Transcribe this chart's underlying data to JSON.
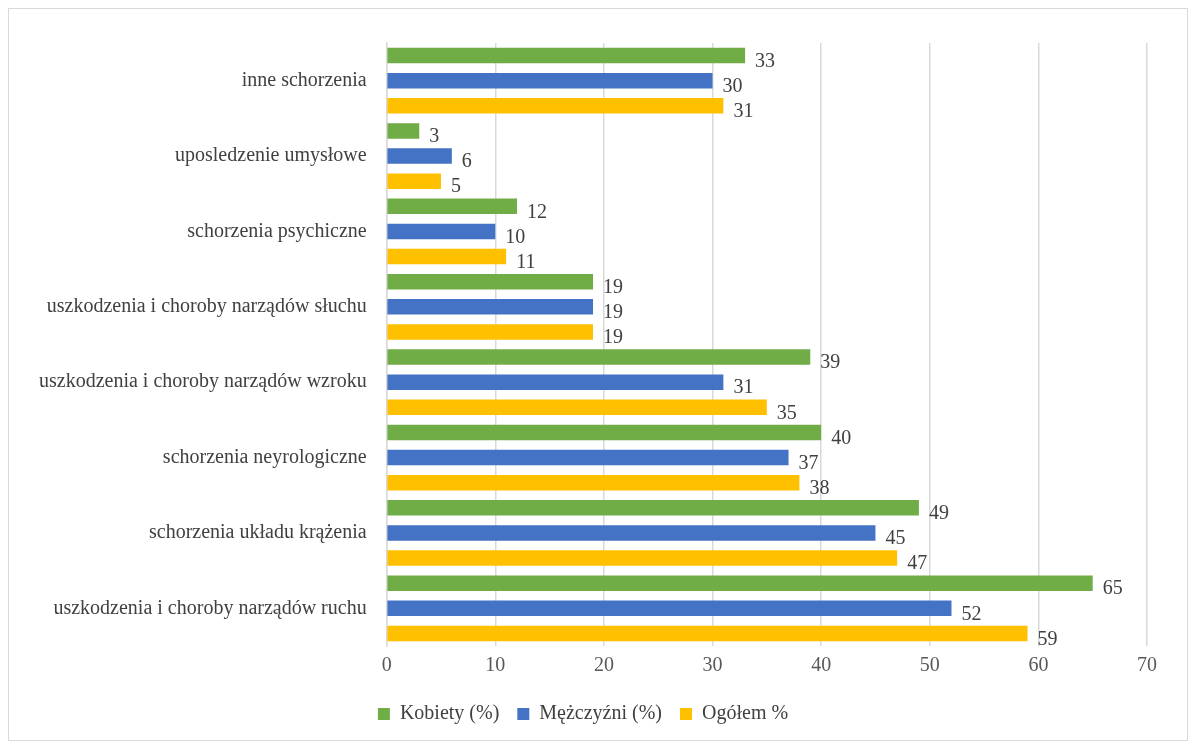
{
  "chart_data": {
    "type": "bar",
    "orientation": "horizontal",
    "categories": [
      "inne schorzenia",
      "uposledzenie umysłowe",
      "schorzenia psychiczne",
      "uszkodzenia i choroby narządów słuchu",
      "uszkodzenia i choroby narządów wzroku",
      "schorzenia neyrologiczne",
      "schorzenia układu krążenia",
      "uszkodzenia i choroby narządów ruchu"
    ],
    "series": [
      {
        "name": "Kobiety (%)",
        "color": "#70ad47",
        "values": [
          33,
          3,
          12,
          19,
          39,
          40,
          49,
          65
        ]
      },
      {
        "name": "Mężczyźni (%)",
        "color": "#4472c4",
        "values": [
          30,
          6,
          10,
          19,
          31,
          37,
          45,
          52
        ]
      },
      {
        "name": "Ogółem %",
        "color": "#ffc000",
        "values": [
          31,
          5,
          11,
          19,
          35,
          38,
          47,
          59
        ]
      }
    ],
    "xlim": [
      0,
      70
    ],
    "xticks": [
      0,
      10,
      20,
      30,
      40,
      50,
      60,
      70
    ],
    "grid": "x",
    "legend": "bottom",
    "data_labels": true
  }
}
